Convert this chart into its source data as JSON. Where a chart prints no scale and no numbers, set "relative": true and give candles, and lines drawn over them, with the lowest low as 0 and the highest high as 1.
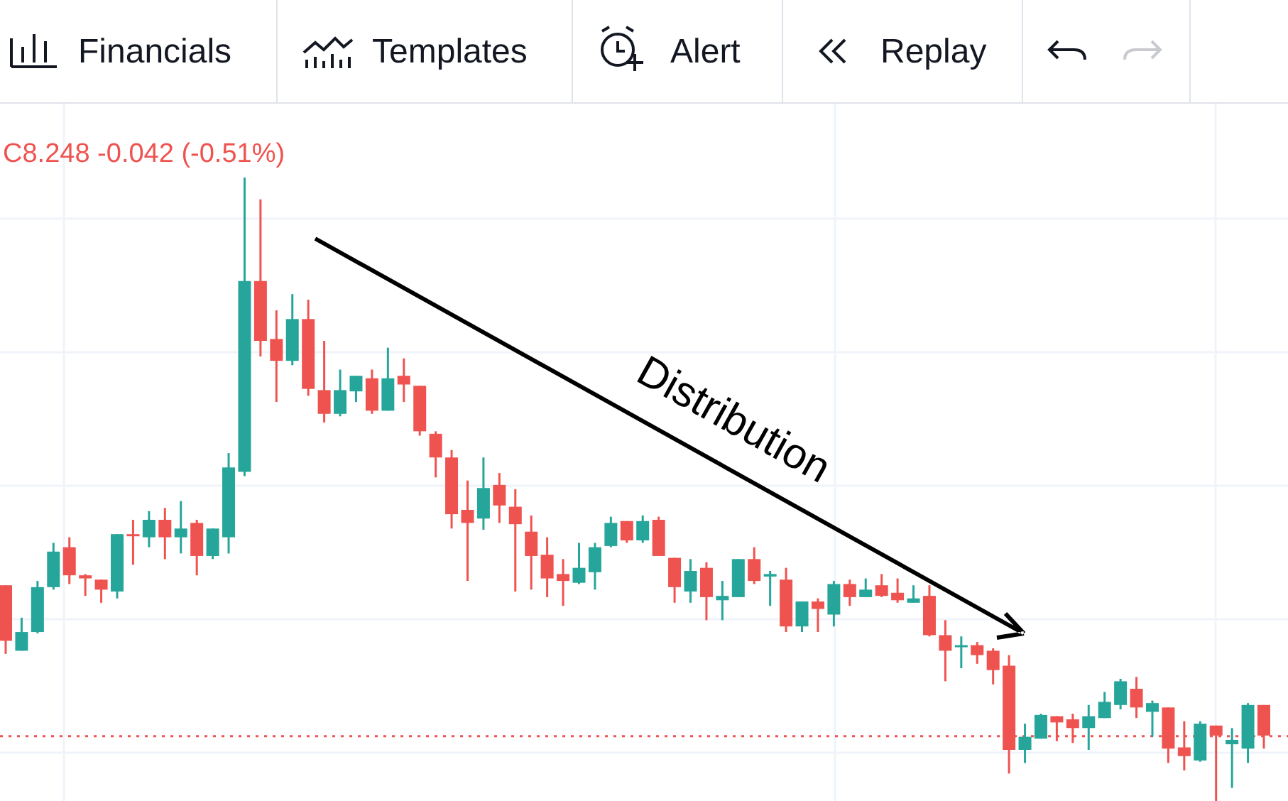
{
  "chart_data": {
    "type": "candlestick",
    "relative": true,
    "grid": true,
    "annotations": [
      "Financials",
      "Templates",
      "Alert",
      "Replay",
      "C8.248 -0.042 (-0.51%)",
      "Distribution"
    ],
    "ref_lines": [
      {
        "axis": "y",
        "value": 0.104,
        "color": "#ef5350",
        "line_style": "dotted"
      }
    ],
    "categories": [
      null,
      null,
      null,
      null,
      null,
      null,
      null,
      null,
      null,
      null,
      null,
      null,
      null,
      null,
      null,
      null,
      null,
      null,
      null,
      null,
      null,
      null,
      null,
      null,
      null,
      null,
      null,
      null,
      null,
      null,
      null,
      null,
      null,
      null,
      null,
      null,
      null,
      null,
      null,
      null,
      null,
      null,
      null,
      null,
      null,
      null,
      null,
      null,
      null,
      null,
      null,
      null,
      null,
      null,
      null,
      null,
      null,
      null,
      null,
      null,
      null,
      null,
      null,
      null,
      null,
      null,
      null,
      null,
      null,
      null,
      null,
      null,
      null,
      null,
      null,
      null,
      null,
      null,
      null,
      null
    ],
    "ohlc": [
      [
        0.346,
        0.346,
        0.236,
        0.257
      ],
      [
        0.241,
        0.294,
        0.241,
        0.271
      ],
      [
        0.271,
        0.353,
        0.269,
        0.343
      ],
      [
        0.343,
        0.414,
        0.339,
        0.4
      ],
      [
        0.407,
        0.423,
        0.348,
        0.362
      ],
      [
        0.362,
        0.364,
        0.329,
        0.357
      ],
      [
        0.355,
        0.355,
        0.318,
        0.339
      ],
      [
        0.336,
        0.428,
        0.325,
        0.428
      ],
      [
        0.428,
        0.451,
        0.379,
        0.425
      ],
      [
        0.423,
        0.465,
        0.407,
        0.451
      ],
      [
        0.451,
        0.47,
        0.388,
        0.423
      ],
      [
        0.423,
        0.481,
        0.397,
        0.437
      ],
      [
        0.446,
        0.451,
        0.362,
        0.393
      ],
      [
        0.393,
        0.437,
        0.388,
        0.437
      ],
      [
        0.423,
        0.558,
        0.397,
        0.535
      ],
      [
        0.528,
        1,
        0.521,
        0.834
      ],
      [
        0.834,
        0.965,
        0.713,
        0.738
      ],
      [
        0.741,
        0.787,
        0.64,
        0.706
      ],
      [
        0.706,
        0.813,
        0.699,
        0.773
      ],
      [
        0.773,
        0.804,
        0.65,
        0.661
      ],
      [
        0.659,
        0.738,
        0.607,
        0.621
      ],
      [
        0.621,
        0.692,
        0.617,
        0.659
      ],
      [
        0.657,
        0.682,
        0.64,
        0.682
      ],
      [
        0.678,
        0.692,
        0.621,
        0.626
      ],
      [
        0.626,
        0.727,
        0.626,
        0.678
      ],
      [
        0.682,
        0.71,
        0.64,
        0.668
      ],
      [
        0.666,
        0.666,
        0.586,
        0.593
      ],
      [
        0.589,
        0.593,
        0.519,
        0.551
      ],
      [
        0.551,
        0.563,
        0.437,
        0.46
      ],
      [
        0.467,
        0.514,
        0.353,
        0.446
      ],
      [
        0.453,
        0.551,
        0.435,
        0.502
      ],
      [
        0.507,
        0.526,
        0.446,
        0.474
      ],
      [
        0.472,
        0.5,
        0.336,
        0.444
      ],
      [
        0.432,
        0.458,
        0.339,
        0.393
      ],
      [
        0.395,
        0.423,
        0.327,
        0.357
      ],
      [
        0.364,
        0.388,
        0.313,
        0.353
      ],
      [
        0.35,
        0.414,
        0.348,
        0.374
      ],
      [
        0.367,
        0.414,
        0.339,
        0.407
      ],
      [
        0.409,
        0.456,
        0.407,
        0.446
      ],
      [
        0.449,
        0.449,
        0.414,
        0.418
      ],
      [
        0.418,
        0.458,
        0.414,
        0.449
      ],
      [
        0.451,
        0.456,
        0.393,
        0.393
      ],
      [
        0.39,
        0.39,
        0.318,
        0.343
      ],
      [
        0.336,
        0.388,
        0.318,
        0.369
      ],
      [
        0.374,
        0.383,
        0.29,
        0.327
      ],
      [
        0.322,
        0.353,
        0.29,
        0.329
      ],
      [
        0.327,
        0.388,
        0.327,
        0.388
      ],
      [
        0.388,
        0.407,
        0.348,
        0.353
      ],
      [
        0.36,
        0.369,
        0.313,
        0.364
      ],
      [
        0.355,
        0.374,
        0.271,
        0.28
      ],
      [
        0.28,
        0.32,
        0.271,
        0.32
      ],
      [
        0.32,
        0.325,
        0.271,
        0.308
      ],
      [
        0.299,
        0.353,
        0.28,
        0.348
      ],
      [
        0.348,
        0.355,
        0.313,
        0.327
      ],
      [
        0.327,
        0.357,
        0.327,
        0.339
      ],
      [
        0.346,
        0.364,
        0.327,
        0.329
      ],
      [
        0.334,
        0.357,
        0.318,
        0.322
      ],
      [
        0.318,
        0.346,
        0.318,
        0.325
      ],
      [
        0.329,
        0.346,
        0.264,
        0.266
      ],
      [
        0.266,
        0.29,
        0.192,
        0.241
      ],
      [
        0.248,
        0.264,
        0.213,
        0.25
      ],
      [
        0.25,
        0.255,
        0.22,
        0.234
      ],
      [
        0.241,
        0.245,
        0.187,
        0.21
      ],
      [
        0.217,
        0.234,
        0.044,
        0.082
      ],
      [
        0.082,
        0.124,
        0.061,
        0.103
      ],
      [
        0.1,
        0.14,
        0.1,
        0.138
      ],
      [
        0.136,
        0.136,
        0.096,
        0.126
      ],
      [
        0.131,
        0.14,
        0.093,
        0.117
      ],
      [
        0.117,
        0.154,
        0.082,
        0.136
      ],
      [
        0.133,
        0.175,
        0.133,
        0.159
      ],
      [
        0.154,
        0.196,
        0.147,
        0.192
      ],
      [
        0.18,
        0.199,
        0.133,
        0.15
      ],
      [
        0.143,
        0.161,
        0.103,
        0.157
      ],
      [
        0.15,
        0.15,
        0.061,
        0.084
      ],
      [
        0.086,
        0.128,
        0.049,
        0.072
      ],
      [
        0.065,
        0.128,
        0.063,
        0.124
      ],
      [
        0.121,
        0.121,
        0,
        0.105
      ],
      [
        0.091,
        0.117,
        0.021,
        0.098
      ],
      [
        0.084,
        0.157,
        0.061,
        0.154
      ],
      [
        0.154,
        0.154,
        0.084,
        0.105
      ]
    ]
  }
}
